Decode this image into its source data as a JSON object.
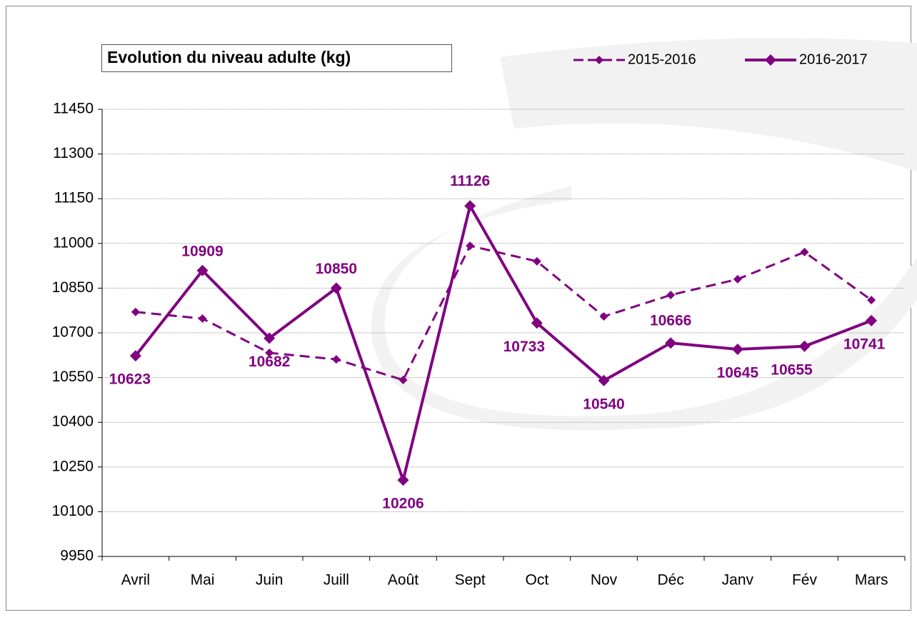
{
  "chart_data": {
    "type": "line",
    "title": "Evolution du niveau adulte (kg)",
    "categories": [
      "Avril",
      "Mai",
      "Juin",
      "Juill",
      "Août",
      "Sept",
      "Oct",
      "Nov",
      "Déc",
      "Janv",
      "Fév",
      "Mars"
    ],
    "series": [
      {
        "name": "2015-2016",
        "color": "#800080",
        "dash": true,
        "values": [
          10770,
          10748,
          10633,
          10611,
          10542,
          10992,
          10940,
          10755,
          10827,
          10880,
          10971,
          10810
        ]
      },
      {
        "name": "2016-2017",
        "color": "#800080",
        "dash": false,
        "values": [
          10623,
          10909,
          10682,
          10850,
          10206,
          11126,
          10733,
          10540,
          10666,
          10645,
          10655,
          10741
        ],
        "show_labels": true
      }
    ],
    "ylim": [
      9950,
      11450
    ],
    "yticks": [
      9950,
      10100,
      10250,
      10400,
      10550,
      10700,
      10850,
      11000,
      11150,
      11300,
      11450
    ],
    "grid": true,
    "legend": "top-right"
  }
}
